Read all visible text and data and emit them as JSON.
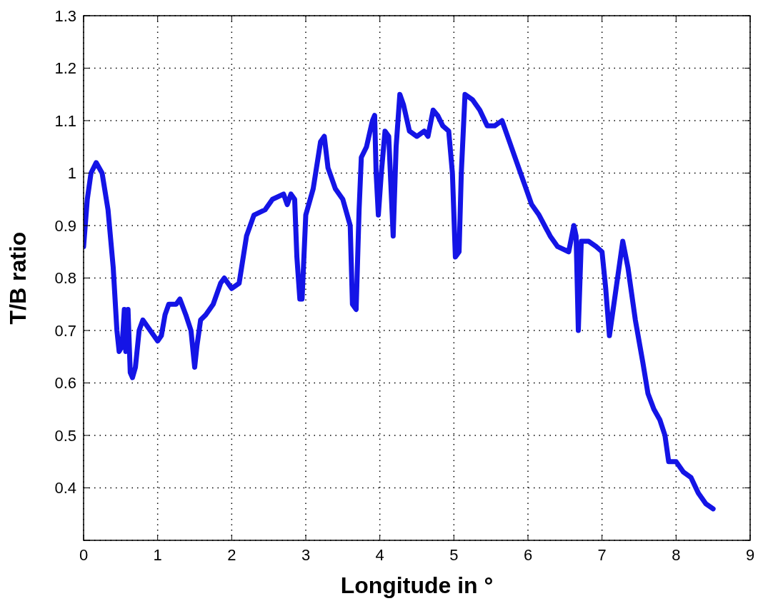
{
  "chart_data": {
    "type": "line",
    "xlabel": "Longitude in °",
    "ylabel": "T/B ratio",
    "xlim": [
      0,
      9
    ],
    "xticks": [
      0,
      1,
      2,
      3,
      4,
      5,
      6,
      7,
      8,
      9
    ],
    "ylim": [
      0.3,
      1.3
    ],
    "yticks": [
      {
        "value": 0.3,
        "label": null
      },
      0.4,
      0.5,
      0.6,
      0.7,
      0.8,
      0.9,
      1,
      1.1,
      1.2,
      1.3
    ],
    "grid": true,
    "line_style": "solid",
    "series": [
      {
        "color": "#1414e6",
        "x": [
          0,
          0.05,
          0.1,
          0.17,
          0.25,
          0.33,
          0.4,
          0.45,
          0.48,
          0.52,
          0.55,
          0.57,
          0.6,
          0.63,
          0.66,
          0.7,
          0.75,
          0.8,
          0.9,
          1.0,
          1.05,
          1.1,
          1.15,
          1.25,
          1.3,
          1.38,
          1.45,
          1.5,
          1.53,
          1.58,
          1.65,
          1.75,
          1.85,
          1.9,
          2.0,
          2.1,
          2.2,
          2.3,
          2.45,
          2.55,
          2.7,
          2.75,
          2.8,
          2.85,
          2.88,
          2.92,
          2.95,
          3.0,
          3.1,
          3.2,
          3.25,
          3.3,
          3.4,
          3.5,
          3.6,
          3.63,
          3.68,
          3.72,
          3.75,
          3.82,
          3.9,
          3.93,
          3.95,
          3.98,
          4.02,
          4.07,
          4.12,
          4.18,
          4.22,
          4.27,
          4.32,
          4.4,
          4.5,
          4.6,
          4.65,
          4.72,
          4.78,
          4.85,
          4.93,
          4.98,
          5.02,
          5.07,
          5.1,
          5.15,
          5.25,
          5.35,
          5.45,
          5.55,
          5.65,
          5.75,
          5.85,
          5.95,
          6.05,
          6.15,
          6.3,
          6.4,
          6.55,
          6.62,
          6.65,
          6.68,
          6.72,
          6.82,
          6.92,
          7.0,
          7.05,
          7.1,
          7.18,
          7.28,
          7.35,
          7.45,
          7.55,
          7.62,
          7.7,
          7.78,
          7.85,
          7.9,
          8.0,
          8.1,
          8.2,
          8.3,
          8.4,
          8.5
        ],
        "values": [
          0.86,
          0.95,
          1.0,
          1.02,
          1.0,
          0.93,
          0.82,
          0.7,
          0.66,
          0.67,
          0.74,
          0.66,
          0.74,
          0.62,
          0.61,
          0.63,
          0.7,
          0.72,
          0.7,
          0.68,
          0.69,
          0.73,
          0.75,
          0.75,
          0.76,
          0.73,
          0.7,
          0.63,
          0.67,
          0.72,
          0.73,
          0.75,
          0.79,
          0.8,
          0.78,
          0.79,
          0.88,
          0.92,
          0.93,
          0.95,
          0.96,
          0.94,
          0.96,
          0.95,
          0.84,
          0.76,
          0.76,
          0.92,
          0.97,
          1.06,
          1.07,
          1.01,
          0.97,
          0.95,
          0.9,
          0.75,
          0.74,
          0.93,
          1.03,
          1.05,
          1.1,
          1.11,
          1.0,
          0.92,
          1.0,
          1.08,
          1.07,
          0.88,
          1.05,
          1.15,
          1.13,
          1.08,
          1.07,
          1.08,
          1.07,
          1.12,
          1.11,
          1.09,
          1.08,
          1.0,
          0.84,
          0.85,
          1.0,
          1.15,
          1.14,
          1.12,
          1.09,
          1.09,
          1.1,
          1.06,
          1.02,
          0.98,
          0.94,
          0.92,
          0.88,
          0.86,
          0.85,
          0.9,
          0.88,
          0.7,
          0.87,
          0.87,
          0.86,
          0.85,
          0.78,
          0.69,
          0.77,
          0.87,
          0.82,
          0.72,
          0.64,
          0.58,
          0.55,
          0.53,
          0.5,
          0.45,
          0.45,
          0.43,
          0.42,
          0.39,
          0.37,
          0.36
        ]
      }
    ]
  }
}
